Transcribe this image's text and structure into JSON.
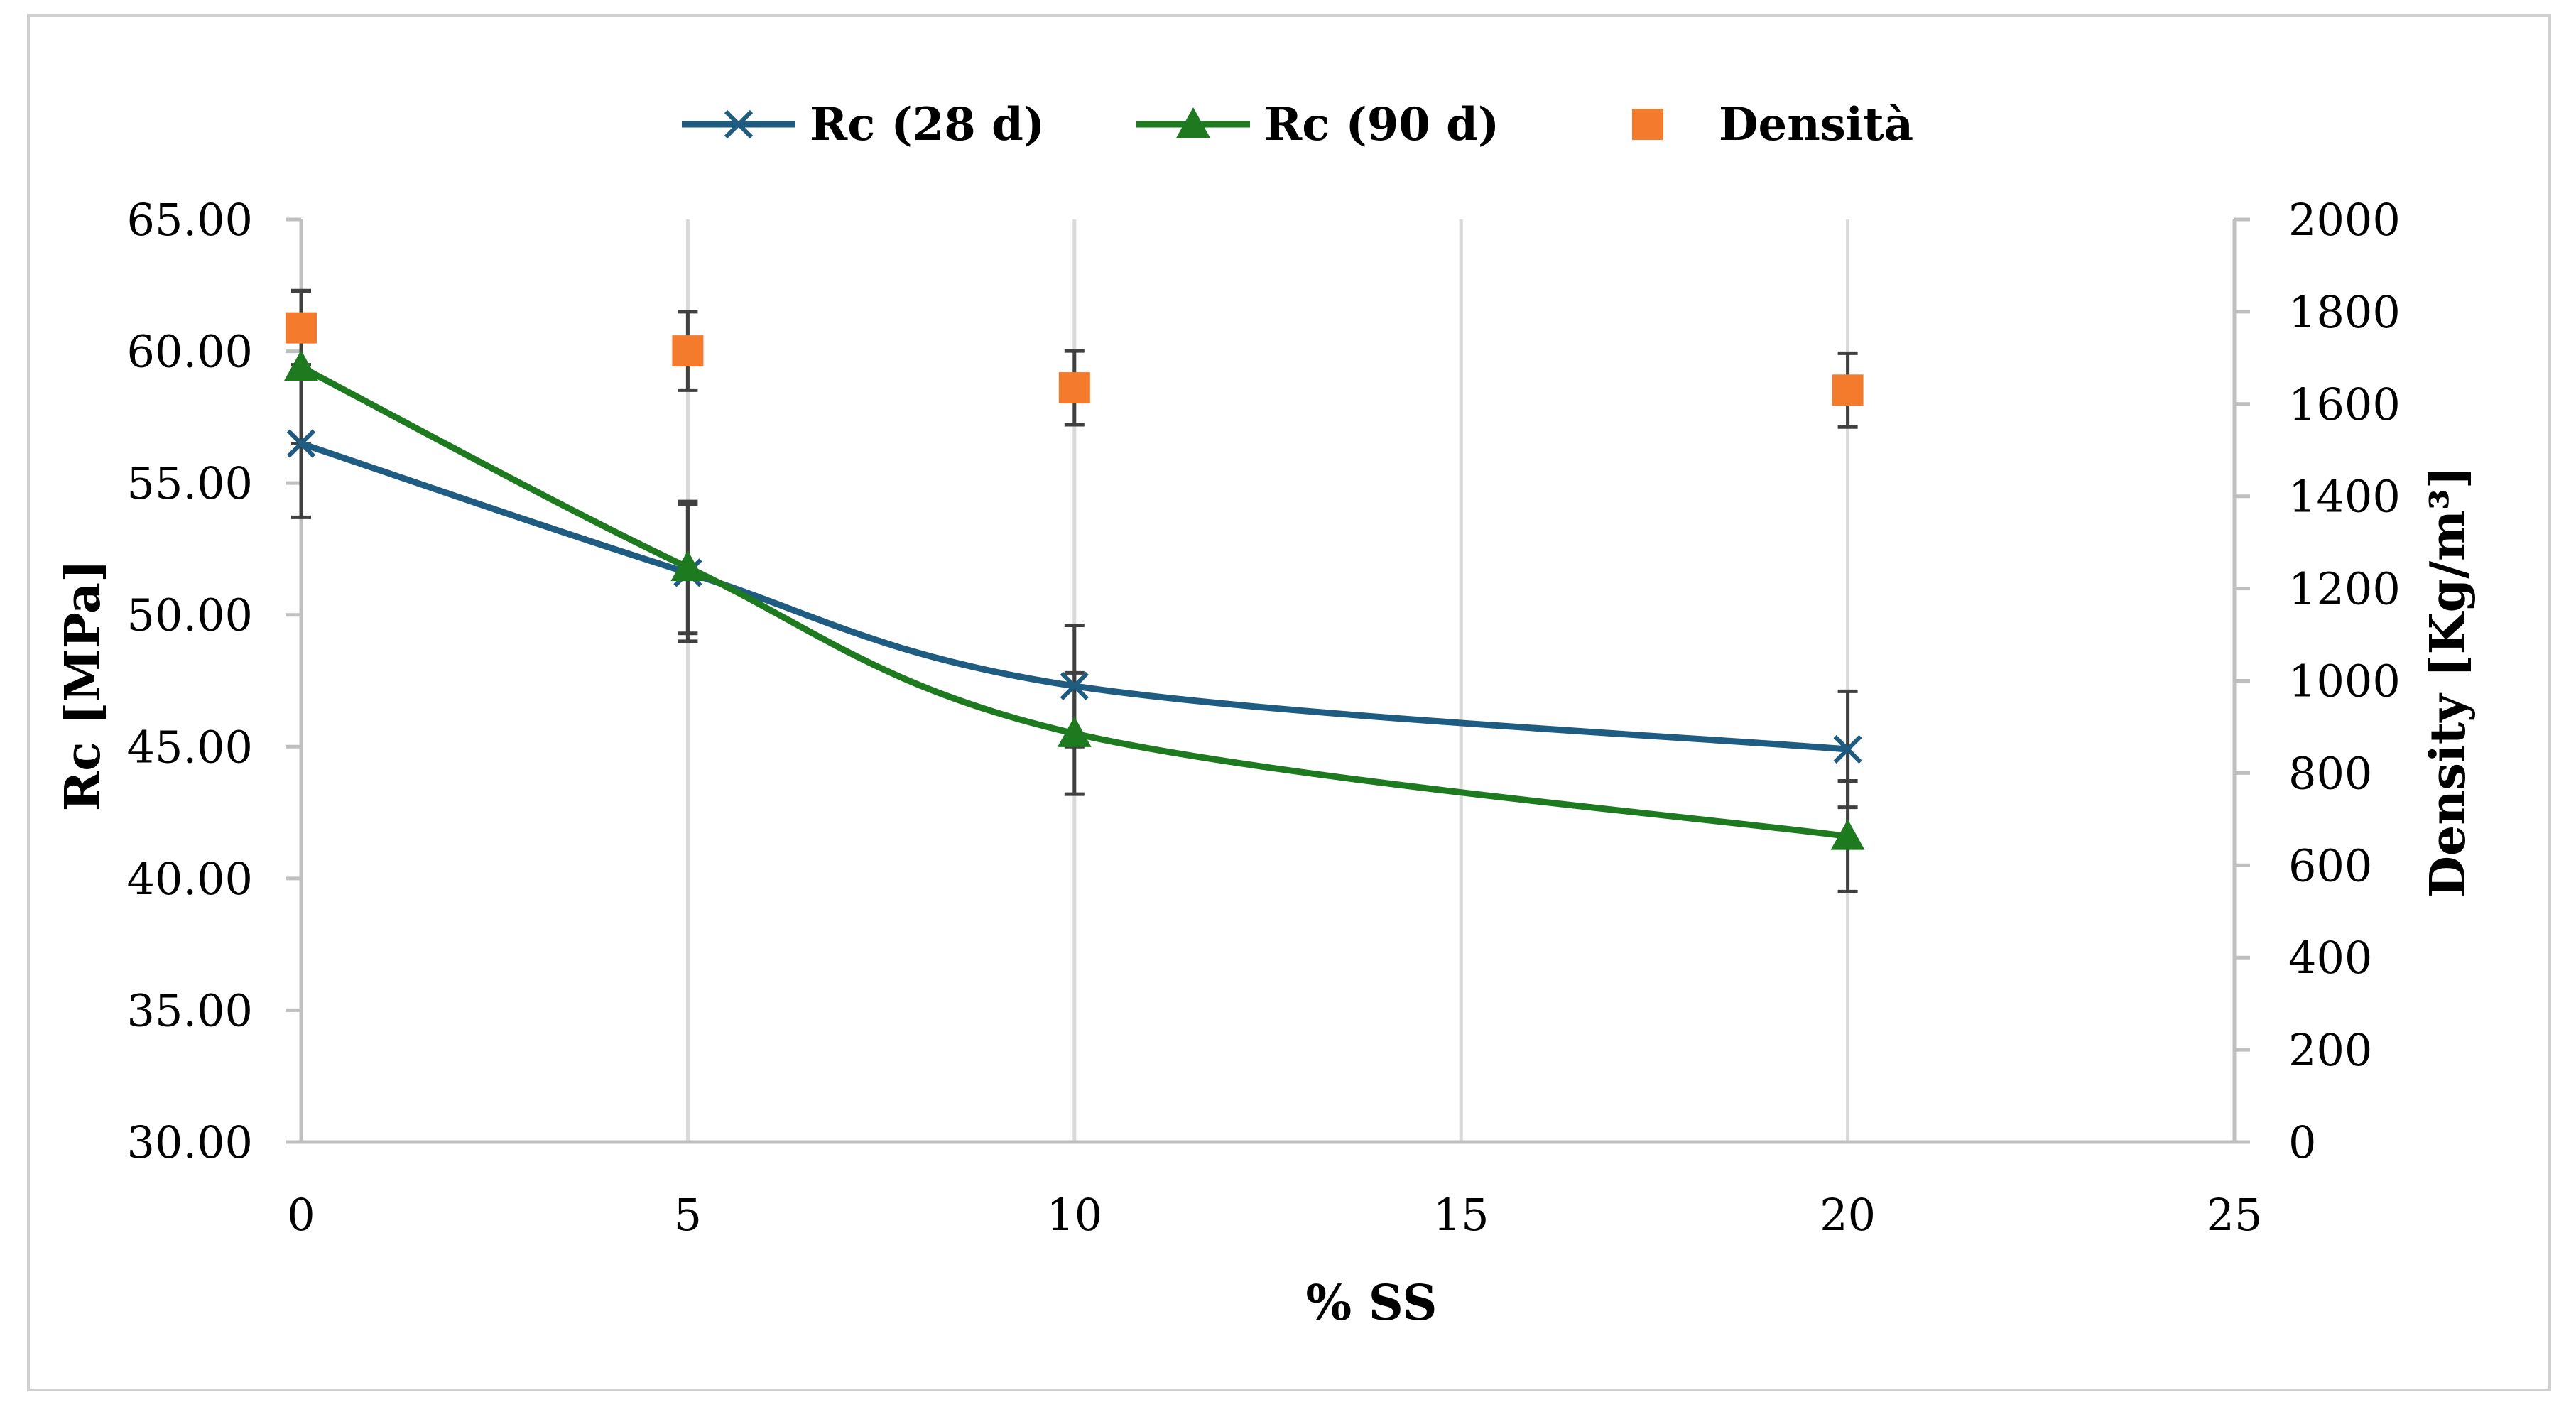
{
  "chart_data": {
    "type": "line",
    "title": "",
    "xlabel": "% SS",
    "ylabel": "Rc [MPa]",
    "y2label": "Density [Kg/m³]",
    "xlim": [
      0,
      25
    ],
    "ylim": [
      30,
      65
    ],
    "y2lim": [
      0,
      2000
    ],
    "x_ticks": [
      0,
      5,
      10,
      15,
      20,
      25
    ],
    "y_ticks": [
      "30.00",
      "35.00",
      "40.00",
      "45.00",
      "50.00",
      "55.00",
      "60.00",
      "65.00"
    ],
    "y2_ticks": [
      0,
      200,
      400,
      600,
      800,
      1000,
      1200,
      1400,
      1600,
      1800,
      2000
    ],
    "grid": "vertical",
    "legend_position": "top",
    "series": [
      {
        "name": "Rc (28 d)",
        "axis": "left",
        "marker": "x",
        "color": "#1f5c82",
        "x": [
          0,
          5,
          10,
          20
        ],
        "values": [
          56.5,
          51.6,
          47.3,
          44.9
        ],
        "error": [
          2.8,
          2.6,
          2.3,
          2.2
        ]
      },
      {
        "name": "Rc (90 d)",
        "axis": "left",
        "marker": "triangle",
        "color": "#1e7a1e",
        "x": [
          0,
          5,
          10,
          20
        ],
        "values": [
          59.4,
          51.8,
          45.5,
          41.6
        ],
        "error": [
          2.9,
          2.5,
          2.3,
          2.1
        ]
      },
      {
        "name": "Densità",
        "axis": "right",
        "marker": "square",
        "color": "#f47b2c",
        "x": [
          0,
          5,
          10,
          20
        ],
        "values": [
          1765,
          1715,
          1635,
          1630
        ],
        "error": [
          80,
          85,
          80,
          80
        ]
      }
    ]
  }
}
